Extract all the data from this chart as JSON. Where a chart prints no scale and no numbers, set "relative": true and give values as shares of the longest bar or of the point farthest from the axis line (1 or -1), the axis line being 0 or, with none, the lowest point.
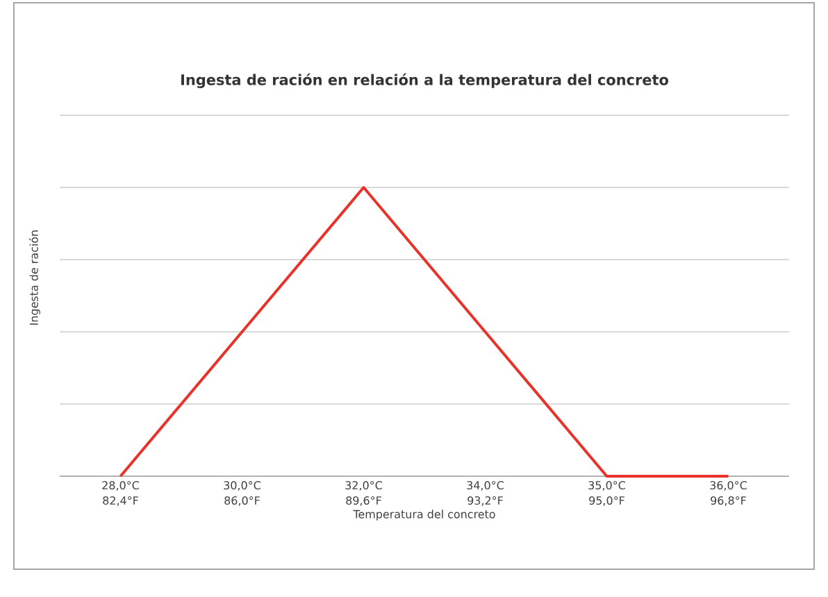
{
  "chart_data": {
    "type": "line",
    "title": "Ingesta de ración en relación a la temperatura del concreto",
    "xlabel": "Temperatura del concreto",
    "ylabel": "Ingesta de ración",
    "categories": [
      "28,0°C 82,4°F",
      "30,0°C 86,0°F",
      "32,0°C 89,6°F",
      "34,0°C 93,2°F",
      "35,0°C 95,0°F",
      "36,0°C 96,8°F"
    ],
    "relative": true,
    "grid": "y",
    "marker": "none",
    "line_style": "solid",
    "series": [
      {
        "color": "#e8322a",
        "values": [
          0,
          0.5,
          1,
          0.5,
          0,
          0
        ]
      }
    ]
  }
}
